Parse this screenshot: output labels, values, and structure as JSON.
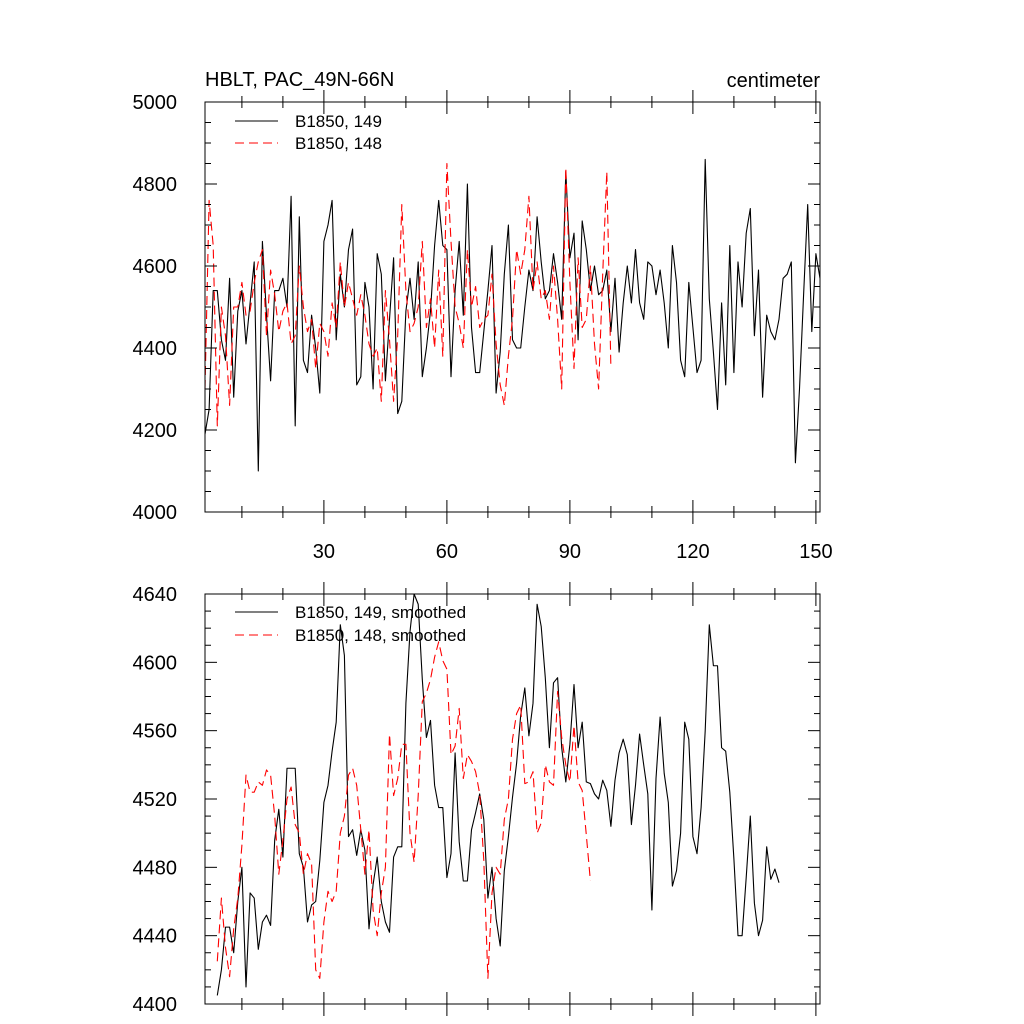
{
  "chart_data": [
    {
      "type": "line",
      "title": "HBLT, PAC_49N-66N",
      "units": "centimeter",
      "xlabel": "",
      "ylabel": "",
      "xlim": [
        1,
        151
      ],
      "ylim": [
        4000,
        5000
      ],
      "xticks": [
        30,
        60,
        90,
        120,
        150
      ],
      "xtick_labels": [
        "30",
        "60",
        "90",
        "120",
        "150"
      ],
      "yticks": [
        4000,
        4200,
        4400,
        4600,
        4800,
        5000
      ],
      "ytick_labels": [
        "4000",
        "4200",
        "4400",
        "4600",
        "4800",
        "5000"
      ],
      "legend_position": "top-left",
      "series": [
        {
          "name": "B1850, 149",
          "color": "#000000",
          "style": "solid",
          "x_start": 1,
          "values": [
            4190,
            4250,
            4540,
            4540,
            4420,
            4370,
            4570,
            4280,
            4490,
            4540,
            4410,
            4510,
            4610,
            4100,
            4660,
            4480,
            4320,
            4540,
            4540,
            4570,
            4500,
            4770,
            4210,
            4720,
            4370,
            4340,
            4480,
            4400,
            4290,
            4660,
            4700,
            4760,
            4420,
            4580,
            4500,
            4640,
            4690,
            4310,
            4330,
            4560,
            4500,
            4300,
            4630,
            4580,
            4320,
            4470,
            4620,
            4240,
            4270,
            4490,
            4570,
            4470,
            4610,
            4330,
            4400,
            4490,
            4650,
            4760,
            4650,
            4640,
            4330,
            4540,
            4660,
            4480,
            4800,
            4450,
            4340,
            4340,
            4440,
            4540,
            4650,
            4290,
            4390,
            4580,
            4700,
            4420,
            4400,
            4400,
            4500,
            4590,
            4540,
            4720,
            4610,
            4520,
            4540,
            4630,
            4560,
            4470,
            4830,
            4620,
            4680,
            4420,
            4710,
            4640,
            4540,
            4600,
            4530,
            4540,
            4590,
            4440,
            4570,
            4390,
            4510,
            4600,
            4510,
            4640,
            4510,
            4470,
            4610,
            4600,
            4530,
            4590,
            4510,
            4400,
            4650,
            4560,
            4370,
            4330,
            4560,
            4450,
            4340,
            4370,
            4860,
            4520,
            4390,
            4250,
            4510,
            4310,
            4650,
            4340,
            4610,
            4500,
            4680,
            4740,
            4430,
            4590,
            4280,
            4480,
            4440,
            4420,
            4470,
            4570,
            4580,
            4610,
            4120,
            4300,
            4530,
            4750,
            4440,
            4630,
            4570
          ]
        },
        {
          "name": "B1850, 148",
          "color": "#ff0000",
          "style": "dashed",
          "x_start": 1,
          "values": [
            4300,
            4760,
            4650,
            4210,
            4500,
            4430,
            4260,
            4500,
            4500,
            4560,
            4480,
            4490,
            4560,
            4610,
            4640,
            4430,
            4590,
            4530,
            4440,
            4490,
            4510,
            4410,
            4430,
            4600,
            4500,
            4440,
            4470,
            4350,
            4460,
            4440,
            4380,
            4510,
            4450,
            4610,
            4500,
            4560,
            4520,
            4480,
            4530,
            4480,
            4410,
            4380,
            4400,
            4270,
            4540,
            4420,
            4270,
            4430,
            4750,
            4540,
            4440,
            4460,
            4500,
            4660,
            4450,
            4520,
            4400,
            4590,
            4380,
            4850,
            4660,
            4500,
            4460,
            4400,
            4640,
            4500,
            4550,
            4450,
            4470,
            4480,
            4580,
            4410,
            4310,
            4260,
            4380,
            4470,
            4640,
            4580,
            4640,
            4770,
            4540,
            4610,
            4520,
            4540,
            4470,
            4600,
            4470,
            4300,
            4840,
            4560,
            4350,
            4620,
            4450,
            4470,
            4600,
            4410,
            4300,
            4580,
            4830,
            4350
          ]
        }
      ]
    },
    {
      "type": "line",
      "title": "",
      "xlabel": "",
      "ylabel": "",
      "xlim": [
        1,
        151
      ],
      "ylim": [
        4400,
        4640
      ],
      "xticks": [
        30,
        60,
        90,
        120,
        150
      ],
      "yticks": [
        4400,
        4440,
        4480,
        4520,
        4560,
        4600,
        4640
      ],
      "ytick_labels": [
        "4400",
        "4440",
        "4480",
        "4520",
        "4560",
        "4600",
        "4640"
      ],
      "legend_position": "top-left",
      "series": [
        {
          "name": "B1850, 149, smoothed",
          "color": "#000000",
          "style": "solid",
          "x_start": 4,
          "values": [
            4405,
            4420,
            4445,
            4445,
            4430,
            4460,
            4480,
            4410,
            4465,
            4462,
            4432,
            4448,
            4452,
            4446,
            4496,
            4514,
            4486,
            4538,
            4538,
            4538,
            4488,
            4480,
            4448,
            4458,
            4460,
            4484,
            4518,
            4528,
            4548,
            4565,
            4622,
            4604,
            4498,
            4502,
            4487,
            4502,
            4490,
            4444,
            4470,
            4486,
            4460,
            4448,
            4442,
            4486,
            4492,
            4492,
            4576,
            4618,
            4640,
            4634,
            4590,
            4556,
            4566,
            4528,
            4515,
            4515,
            4474,
            4488,
            4547,
            4495,
            4472,
            4472,
            4502,
            4512,
            4523,
            4508,
            4462,
            4480,
            4450,
            4434,
            4478,
            4498,
            4521,
            4541,
            4569,
            4585,
            4557,
            4576,
            4634,
            4621,
            4591,
            4550,
            4588,
            4591,
            4550,
            4530,
            4552,
            4587,
            4550,
            4565,
            4530,
            4529,
            4523,
            4520,
            4531,
            4525,
            4504,
            4531,
            4547,
            4555,
            4546,
            4505,
            4528,
            4558,
            4540,
            4523,
            4455,
            4532,
            4568,
            4535,
            4518,
            4469,
            4478,
            4500,
            4565,
            4555,
            4498,
            4488,
            4515,
            4560,
            4622,
            4598,
            4598,
            4550,
            4548,
            4524,
            4485,
            4440,
            4440,
            4474,
            4510,
            4459,
            4440,
            4449,
            4492,
            4473,
            4479,
            4471
          ]
        },
        {
          "name": "B1850, 148, smoothed",
          "color": "#ff0000",
          "style": "dashed",
          "x_start": 4,
          "values": [
            4425,
            4462,
            4433,
            4416,
            4444,
            4462,
            4493,
            4534,
            4524,
            4524,
            4530,
            4528,
            4537,
            4534,
            4510,
            4476,
            4496,
            4520,
            4527,
            4505,
            4500,
            4476,
            4488,
            4482,
            4420,
            4415,
            4448,
            4466,
            4460,
            4466,
            4500,
            4510,
            4534,
            4538,
            4528,
            4502,
            4476,
            4502,
            4455,
            4440,
            4465,
            4480,
            4558,
            4522,
            4532,
            4552,
            4552,
            4500,
            4483,
            4522,
            4577,
            4582,
            4590,
            4603,
            4612,
            4601,
            4596,
            4546,
            4551,
            4573,
            4532,
            4546,
            4542,
            4536,
            4523,
            4484,
            4415,
            4465,
            4480,
            4476,
            4508,
            4520,
            4555,
            4570,
            4575,
            4529,
            4530,
            4536,
            4500,
            4506,
            4540,
            4530,
            4528,
            4583,
            4556,
            4540,
            4530,
            4563,
            4530,
            4525,
            4499,
            4472
          ]
        }
      ]
    }
  ]
}
